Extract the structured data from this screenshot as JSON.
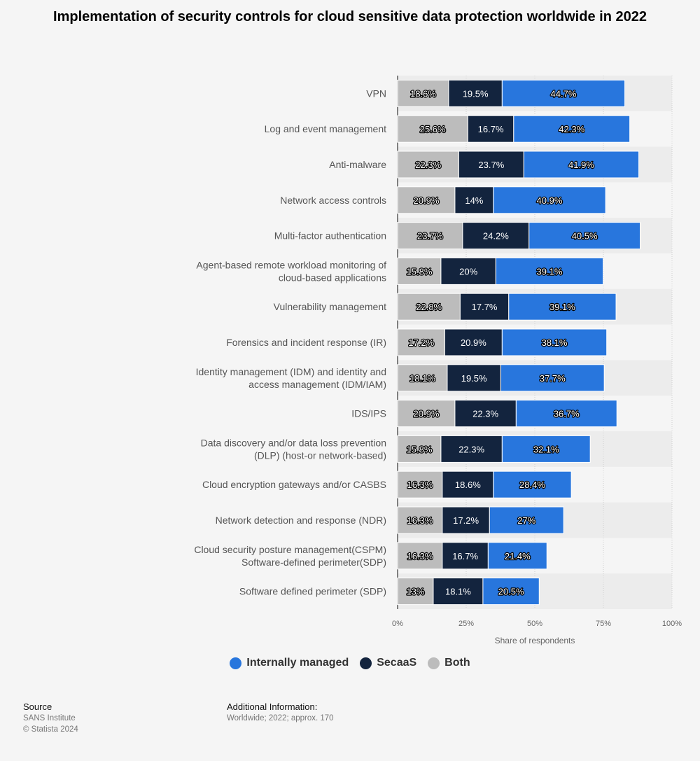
{
  "title": "Implementation of security controls for cloud sensitive data protection worldwide in 2022",
  "chart_data": {
    "type": "bar",
    "orientation": "horizontal",
    "stacked": true,
    "categories": [
      "VPN",
      "Log and event management",
      "Anti-malware",
      "Network access controls",
      "Multi-factor authentication",
      "Agent-based remote workload monitoring of cloud-based applications",
      "Vulnerability management",
      "Forensics and incident response (IR)",
      "Identity management (IDM) and identity and access management (IDM/IAM)",
      "IDS/IPS",
      "Data discovery and/or data loss prevention (DLP) (host-or network-based)",
      "Cloud encryption gateways and/or CASBS",
      "Network detection and response (NDR)",
      "Cloud security posture management(CSPM) Software-defined perimeter(SDP)",
      "Software defined perimeter (SDP)"
    ],
    "series": [
      {
        "name": "Both",
        "color": "#bcbcbc",
        "values": [
          18.6,
          25.6,
          22.3,
          20.9,
          23.7,
          15.8,
          22.8,
          17.2,
          18.1,
          20.9,
          15.8,
          16.3,
          16.3,
          16.3,
          13
        ]
      },
      {
        "name": "SecaaS",
        "color": "#13243e",
        "values": [
          19.5,
          16.7,
          23.7,
          14,
          24.2,
          20,
          17.7,
          20.9,
          19.5,
          22.3,
          22.3,
          18.6,
          17.2,
          16.7,
          18.1
        ]
      },
      {
        "name": "Internally managed",
        "color": "#2876dd",
        "values": [
          44.7,
          42.3,
          41.9,
          40.9,
          40.5,
          39.1,
          39.1,
          38.1,
          37.7,
          36.7,
          32.1,
          28.4,
          27,
          21.4,
          20.5
        ]
      }
    ],
    "xlim": [
      0,
      100
    ],
    "x_ticks": [
      "0%",
      "25%",
      "50%",
      "75%",
      "100%"
    ],
    "xlabel": "Share of respondents",
    "value_suffix": "%",
    "grid": true,
    "legend_position": "bottom"
  },
  "legend": [
    {
      "label": "Internally managed",
      "color": "#2876dd"
    },
    {
      "label": "SecaaS",
      "color": "#13243e"
    },
    {
      "label": "Both",
      "color": "#bcbcbc"
    }
  ],
  "footer": {
    "source_heading": "Source",
    "source_name": "SANS Institute",
    "copyright": "© Statista 2024",
    "info_heading": "Additional Information:",
    "info_text": "Worldwide; 2022; approx. 170"
  }
}
